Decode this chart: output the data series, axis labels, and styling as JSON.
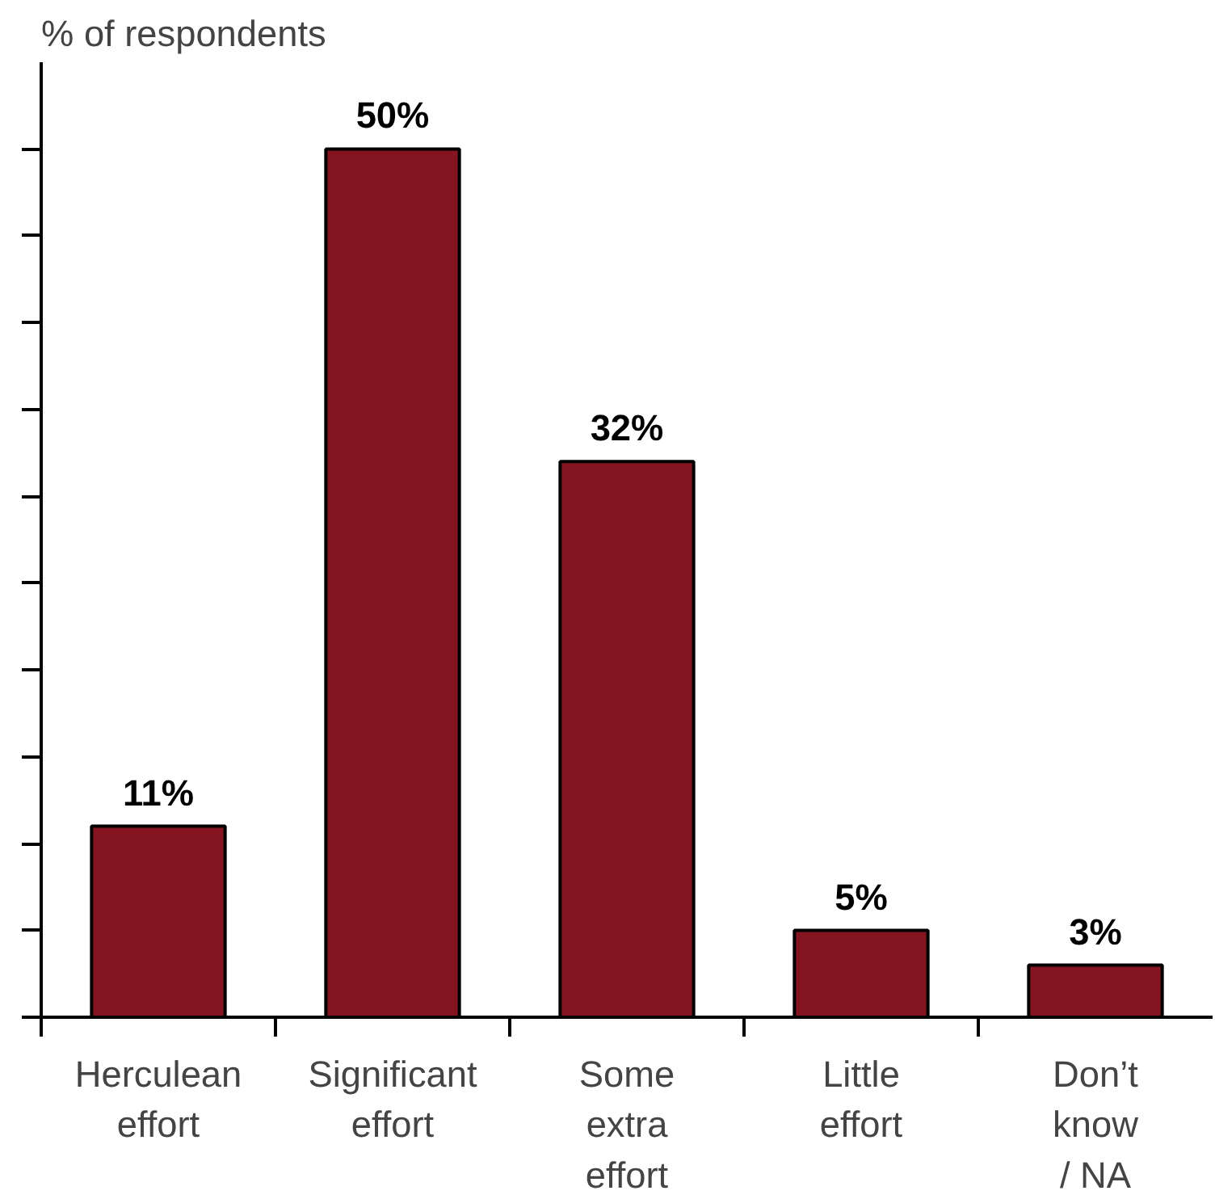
{
  "chart_data": {
    "type": "bar",
    "ylabel": "% of respondents",
    "categories": [
      "Herculean\neffort",
      "Significant\neffort",
      "Some\nextra\neffort",
      "Little\neffort",
      "Don’t\nknow\n/ NA"
    ],
    "values": [
      11,
      50,
      32,
      5,
      3
    ],
    "value_labels": [
      "11%",
      "50%",
      "32%",
      "5%",
      "3%"
    ],
    "color": "#841520",
    "ylim": [
      0,
      55
    ],
    "yticks": [
      {
        "value": 0,
        "label": null
      },
      {
        "value": 5,
        "label": null
      },
      {
        "value": 10,
        "label": null
      },
      {
        "value": 15,
        "label": null
      },
      {
        "value": 20,
        "label": null
      },
      {
        "value": 25,
        "label": null
      },
      {
        "value": 30,
        "label": null
      },
      {
        "value": 35,
        "label": null
      },
      {
        "value": 40,
        "label": null
      },
      {
        "value": 45,
        "label": null
      },
      {
        "value": 50,
        "label": null
      }
    ],
    "grid": false
  }
}
